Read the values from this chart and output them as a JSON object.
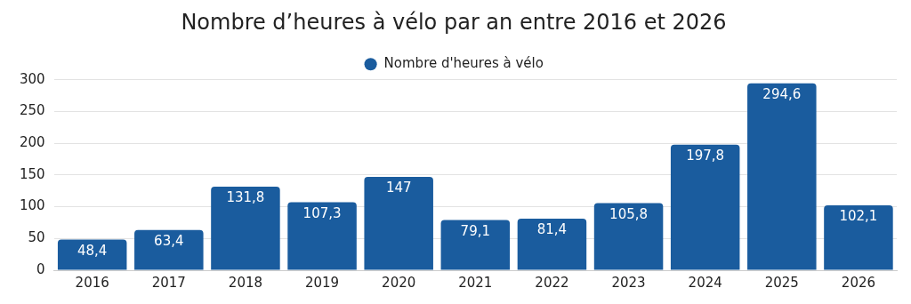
{
  "chart_data": {
    "type": "bar",
    "title": "Nombre d’heures à vélo par an entre 2016 et 2026",
    "categories": [
      "2016",
      "2017",
      "2018",
      "2019",
      "2020",
      "2021",
      "2022",
      "2023",
      "2024",
      "2025",
      "2026"
    ],
    "series": [
      {
        "name": "Nombre d'heures à vélo",
        "color": "#1a5c9e",
        "values": [
          48.4,
          63.4,
          131.8,
          107.3,
          147,
          79.1,
          81.4,
          105.8,
          197.8,
          294.6,
          102.1
        ],
        "value_labels": [
          "48,4",
          "63,4",
          "131,8",
          "107,3",
          "147",
          "79,1",
          "81,4",
          "105,8",
          "197,8",
          "294,6",
          "102,1"
        ]
      }
    ],
    "ylim": [
      0,
      300
    ],
    "yticks": [
      0,
      50,
      100,
      150,
      200,
      250,
      300
    ],
    "grid": "y",
    "legend": "top"
  }
}
